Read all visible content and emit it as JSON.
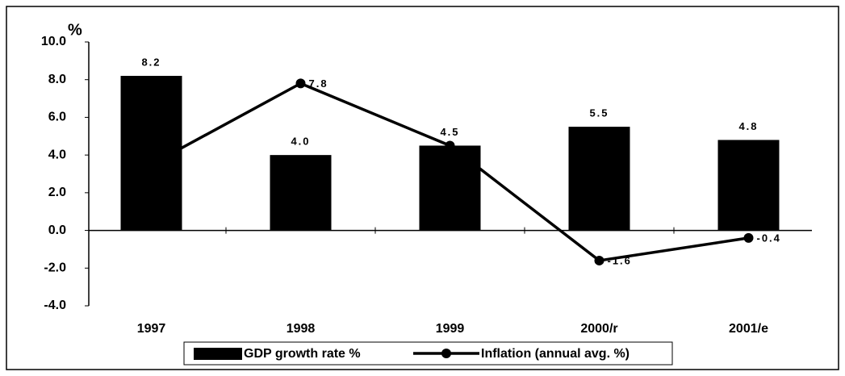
{
  "chart_data": {
    "type": "bar_line",
    "y_unit": "%",
    "categories": [
      "1997",
      "1998",
      "1999",
      "2000/r",
      "2001/e"
    ],
    "series": [
      {
        "name": "GDP growth rate %",
        "type": "bar",
        "color": "#000000",
        "values": [
          8.2,
          4.0,
          4.5,
          5.5,
          4.8
        ],
        "value_labels": [
          "8.2",
          "4.0",
          "4.5",
          "5.5",
          "4.8"
        ]
      },
      {
        "name": "Inflation (annual avg. %)",
        "type": "line",
        "color": "#000000",
        "values": [
          3.5,
          7.8,
          4.5,
          -1.6,
          -0.4
        ],
        "value_labels": [
          null,
          "7.8",
          null,
          "-1.6",
          "-0.4"
        ]
      }
    ],
    "ylim": [
      -4,
      10
    ],
    "yticks": [
      {
        "value": -4,
        "label": "-4.0"
      },
      {
        "value": -2,
        "label": "-2.0"
      },
      {
        "value": 0,
        "label": "0.0"
      },
      {
        "value": 2,
        "label": "2.0"
      },
      {
        "value": 4,
        "label": "4.0"
      },
      {
        "value": 6,
        "label": "6.0"
      },
      {
        "value": 8,
        "label": "8.0"
      },
      {
        "value": 10,
        "label": "10.0"
      }
    ],
    "legend": "bottom"
  }
}
